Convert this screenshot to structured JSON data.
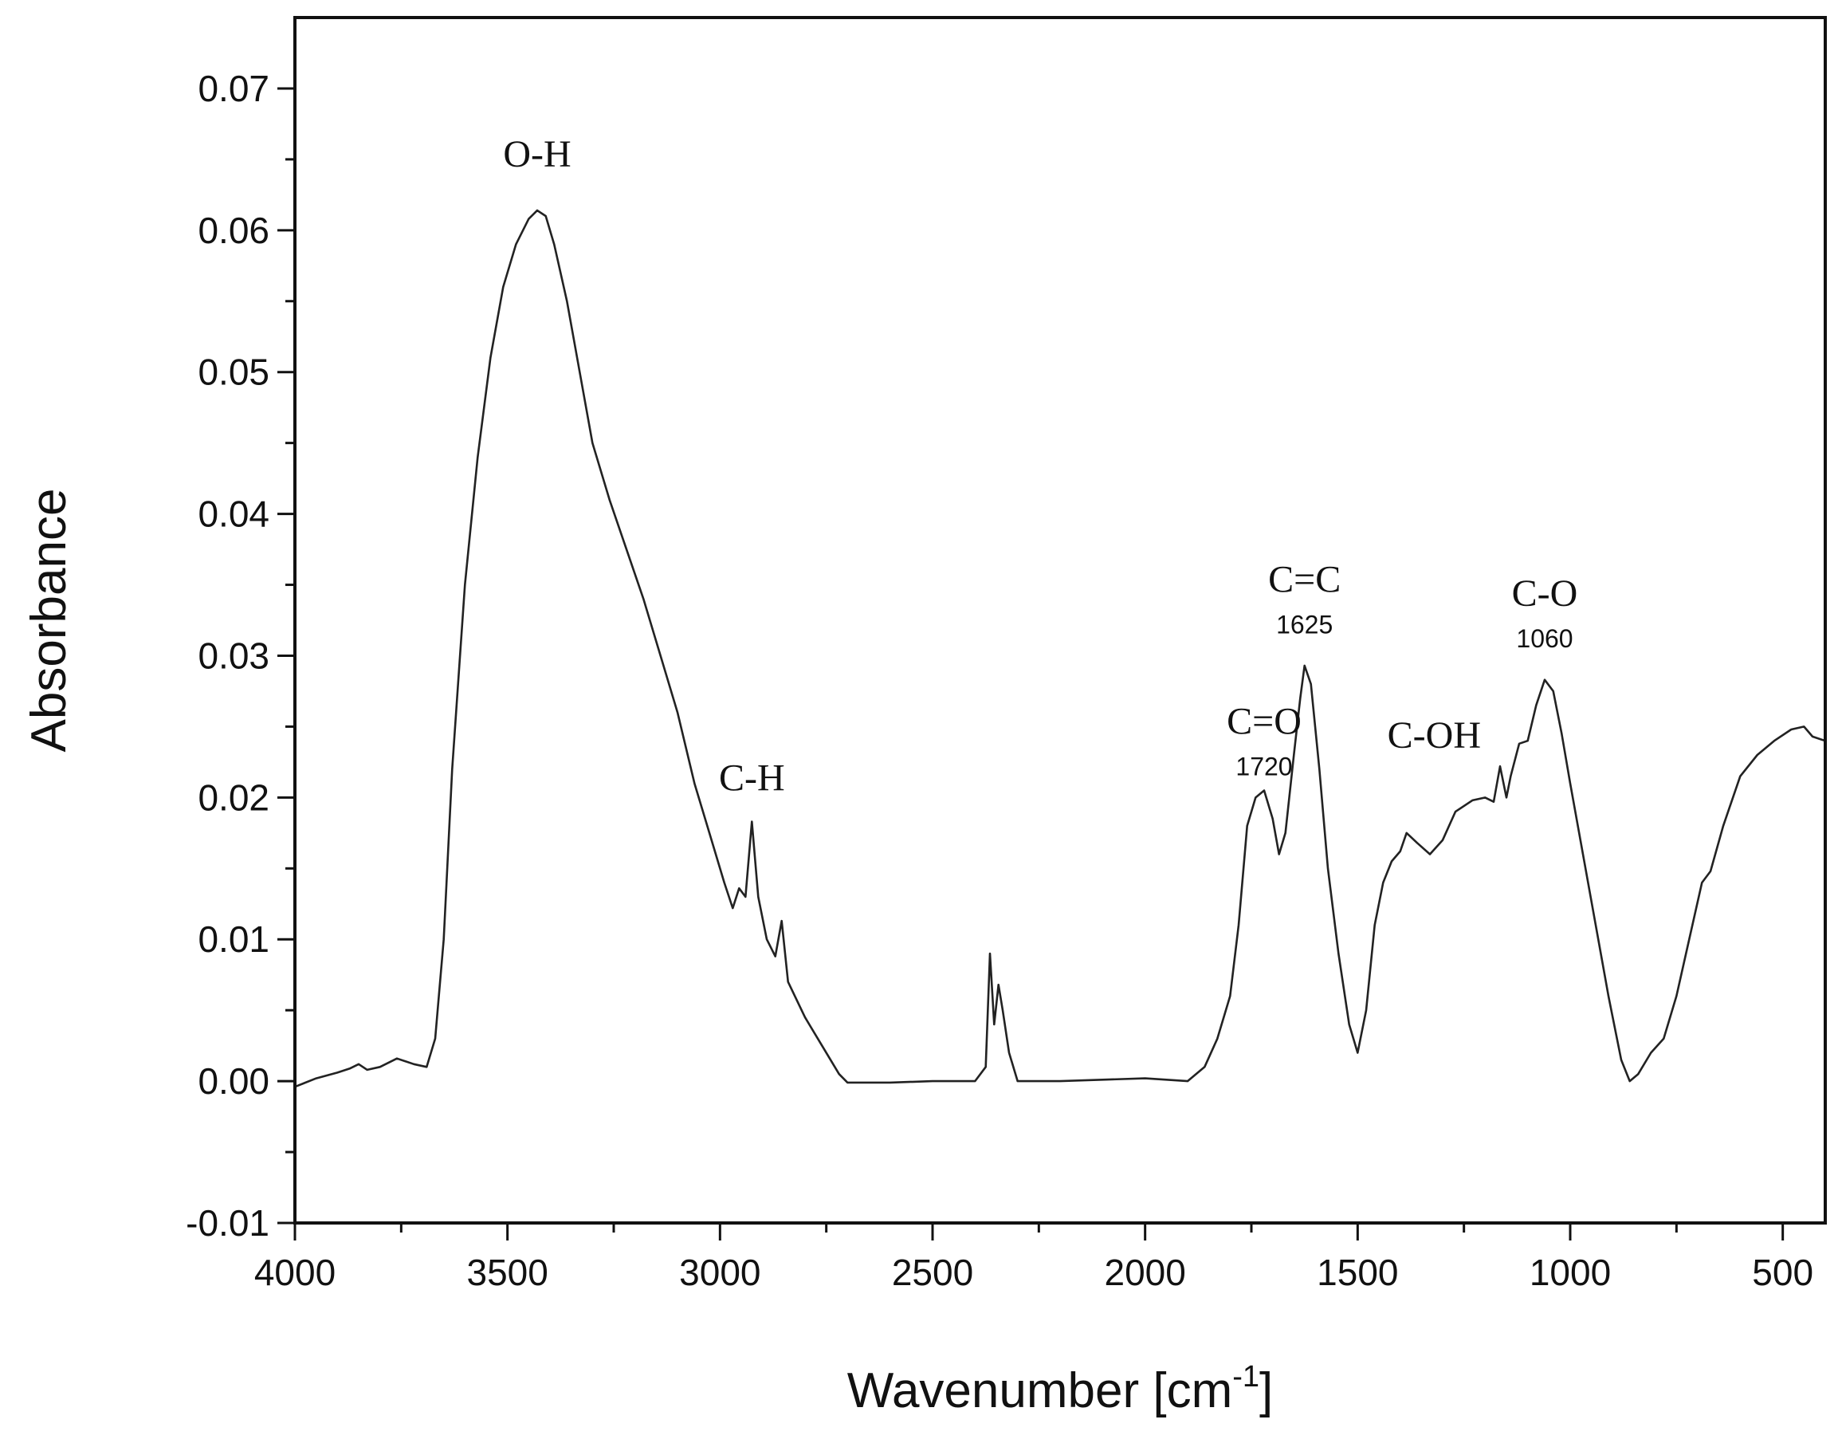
{
  "chart_data": {
    "type": "line",
    "title": "",
    "xlabel": "Wavenumber [cm",
    "xlabel_superscript": "-1",
    "xlabel_suffix": "]",
    "ylabel": "Absorbance",
    "xlim": [
      4000,
      400
    ],
    "ylim": [
      -0.01,
      0.075
    ],
    "x_reversed": true,
    "grid": false,
    "legend": "none",
    "x_ticks": [
      {
        "value": 4000,
        "label": "4000"
      },
      {
        "value": 3500,
        "label": "3500"
      },
      {
        "value": 3000,
        "label": "3000"
      },
      {
        "value": 2500,
        "label": "2500"
      },
      {
        "value": 2000,
        "label": "2000"
      },
      {
        "value": 1500,
        "label": "1500"
      },
      {
        "value": 1000,
        "label": "1000"
      },
      {
        "value": 500,
        "label": "500"
      }
    ],
    "x_minor_step": 250,
    "y_ticks": [
      {
        "value": -0.01,
        "label": "-0.01"
      },
      {
        "value": 0.0,
        "label": "0.00"
      },
      {
        "value": 0.01,
        "label": "0.01"
      },
      {
        "value": 0.02,
        "label": "0.02"
      },
      {
        "value": 0.03,
        "label": "0.03"
      },
      {
        "value": 0.04,
        "label": "0.04"
      },
      {
        "value": 0.05,
        "label": "0.05"
      },
      {
        "value": 0.06,
        "label": "0.06"
      },
      {
        "value": 0.07,
        "label": "0.07"
      }
    ],
    "y_minor_step": 0.005,
    "series": [
      {
        "color": "#222222",
        "points": [
          [
            4000,
            -0.0004
          ],
          [
            3950,
            0.0002
          ],
          [
            3900,
            0.0006
          ],
          [
            3870,
            0.0009
          ],
          [
            3850,
            0.0012
          ],
          [
            3830,
            0.0008
          ],
          [
            3800,
            0.001
          ],
          [
            3760,
            0.0016
          ],
          [
            3720,
            0.0012
          ],
          [
            3690,
            0.001
          ],
          [
            3670,
            0.003
          ],
          [
            3650,
            0.01
          ],
          [
            3630,
            0.022
          ],
          [
            3600,
            0.035
          ],
          [
            3570,
            0.044
          ],
          [
            3540,
            0.051
          ],
          [
            3510,
            0.056
          ],
          [
            3480,
            0.059
          ],
          [
            3450,
            0.0608
          ],
          [
            3430,
            0.0614
          ],
          [
            3410,
            0.061
          ],
          [
            3390,
            0.059
          ],
          [
            3360,
            0.055
          ],
          [
            3330,
            0.05
          ],
          [
            3300,
            0.045
          ],
          [
            3260,
            0.041
          ],
          [
            3220,
            0.0375
          ],
          [
            3180,
            0.034
          ],
          [
            3140,
            0.03
          ],
          [
            3100,
            0.026
          ],
          [
            3060,
            0.021
          ],
          [
            3020,
            0.017
          ],
          [
            2990,
            0.014
          ],
          [
            2970,
            0.0122
          ],
          [
            2955,
            0.0136
          ],
          [
            2940,
            0.013
          ],
          [
            2925,
            0.0183
          ],
          [
            2910,
            0.013
          ],
          [
            2890,
            0.01
          ],
          [
            2870,
            0.0088
          ],
          [
            2855,
            0.0113
          ],
          [
            2840,
            0.007
          ],
          [
            2800,
            0.0045
          ],
          [
            2760,
            0.0025
          ],
          [
            2720,
            0.0005
          ],
          [
            2700,
            -0.0001
          ],
          [
            2600,
            -0.0001
          ],
          [
            2500,
            0.0
          ],
          [
            2400,
            0.0
          ],
          [
            2375,
            0.001
          ],
          [
            2365,
            0.009
          ],
          [
            2355,
            0.004
          ],
          [
            2345,
            0.0068
          ],
          [
            2335,
            0.005
          ],
          [
            2320,
            0.002
          ],
          [
            2300,
            0.0
          ],
          [
            2200,
            0.0
          ],
          [
            2100,
            0.0001
          ],
          [
            2000,
            0.0002
          ],
          [
            1900,
            0.0
          ],
          [
            1860,
            0.001
          ],
          [
            1830,
            0.003
          ],
          [
            1800,
            0.006
          ],
          [
            1780,
            0.011
          ],
          [
            1760,
            0.018
          ],
          [
            1740,
            0.02
          ],
          [
            1720,
            0.0205
          ],
          [
            1700,
            0.0185
          ],
          [
            1685,
            0.016
          ],
          [
            1670,
            0.0175
          ],
          [
            1650,
            0.023
          ],
          [
            1635,
            0.027
          ],
          [
            1625,
            0.0293
          ],
          [
            1610,
            0.028
          ],
          [
            1590,
            0.022
          ],
          [
            1570,
            0.015
          ],
          [
            1545,
            0.009
          ],
          [
            1520,
            0.004
          ],
          [
            1500,
            0.002
          ],
          [
            1480,
            0.005
          ],
          [
            1460,
            0.011
          ],
          [
            1440,
            0.014
          ],
          [
            1420,
            0.0155
          ],
          [
            1400,
            0.0162
          ],
          [
            1385,
            0.0175
          ],
          [
            1360,
            0.0168
          ],
          [
            1330,
            0.016
          ],
          [
            1300,
            0.017
          ],
          [
            1270,
            0.019
          ],
          [
            1230,
            0.0198
          ],
          [
            1200,
            0.02
          ],
          [
            1180,
            0.0197
          ],
          [
            1165,
            0.0222
          ],
          [
            1150,
            0.02
          ],
          [
            1140,
            0.0215
          ],
          [
            1120,
            0.0238
          ],
          [
            1100,
            0.024
          ],
          [
            1080,
            0.0265
          ],
          [
            1060,
            0.0283
          ],
          [
            1040,
            0.0275
          ],
          [
            1020,
            0.0245
          ],
          [
            1000,
            0.021
          ],
          [
            970,
            0.016
          ],
          [
            940,
            0.011
          ],
          [
            910,
            0.006
          ],
          [
            880,
            0.0015
          ],
          [
            860,
            0.0
          ],
          [
            840,
            0.0005
          ],
          [
            810,
            0.002
          ],
          [
            780,
            0.003
          ],
          [
            750,
            0.006
          ],
          [
            720,
            0.01
          ],
          [
            690,
            0.014
          ],
          [
            670,
            0.0148
          ],
          [
            640,
            0.018
          ],
          [
            600,
            0.0215
          ],
          [
            560,
            0.023
          ],
          [
            520,
            0.024
          ],
          [
            480,
            0.0248
          ],
          [
            450,
            0.025
          ],
          [
            430,
            0.0243
          ],
          [
            400,
            0.024
          ]
        ]
      }
    ],
    "annotations": [
      {
        "text": "O-H",
        "sub": "",
        "x": 3430,
        "y": 0.0645
      },
      {
        "text": "C-H",
        "sub": "",
        "x": 2925,
        "y": 0.0205
      },
      {
        "text": "C=O",
        "sub": "1720",
        "x": 1720,
        "y": 0.0245
      },
      {
        "text": "C=C",
        "sub": "1625",
        "x": 1625,
        "y": 0.0345
      },
      {
        "text": "C-OH",
        "sub": "",
        "x": 1320,
        "y": 0.0235
      },
      {
        "text": "C-O",
        "sub": "1060",
        "x": 1060,
        "y": 0.0335
      }
    ]
  }
}
